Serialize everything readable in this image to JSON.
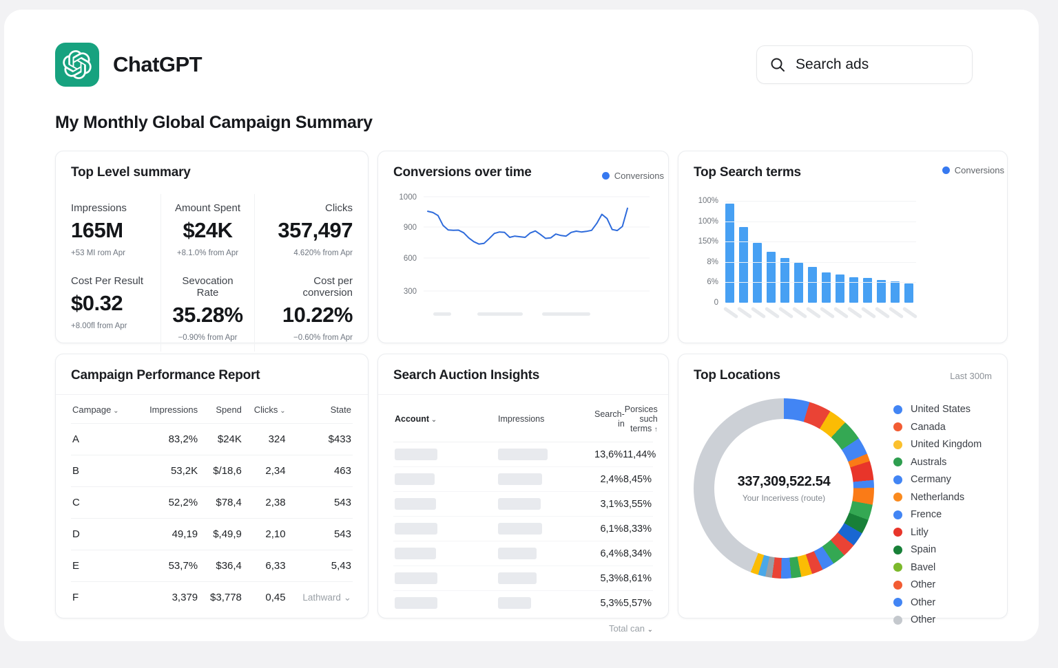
{
  "header": {
    "brand": "ChatGPT",
    "search_text": "Search ads"
  },
  "page_title": "My Monthly Global Campaign Summary",
  "colors": {
    "brand_green": "#17a27f",
    "chart_blue": "#2e6bdb",
    "bar_blue": "#47a0f3",
    "legend_dot_blue": "#3779f0",
    "donut_gray": "#ccd0d6"
  },
  "top_level_summary": {
    "title": "Top Level summary",
    "metrics": [
      {
        "label": "Impressions",
        "value": "165M",
        "delta": "+53 MI rom Apr",
        "align": "left"
      },
      {
        "label": "Amount Spent",
        "value": "$24K",
        "delta": "+8.1.0% from Apr",
        "align": "center"
      },
      {
        "label": "Clicks",
        "value": "357,497",
        "delta": "4.620% from Apr",
        "align": "right"
      },
      {
        "label": "Cost Per Result",
        "value": "$0.32",
        "delta": "+8.00fl from Apr",
        "align": "left"
      },
      {
        "label": "Sevocation Rate",
        "value": "35.28%",
        "delta": "−0.90% from Apr",
        "align": "center"
      },
      {
        "label": "Cost per conversion",
        "value": "10.22%",
        "delta": "−0.60% from Apr",
        "align": "right"
      }
    ]
  },
  "conversions_over_time": {
    "title": "Conversions over time",
    "legend_label": "Conversions",
    "chart_data": {
      "type": "line",
      "title": "Conversions over time",
      "series": [
        {
          "name": "Conversions",
          "values": [
            952,
            948,
            938,
            905,
            872,
            868,
            870,
            845,
            795,
            758,
            735,
            742,
            788,
            838,
            852,
            848,
            800,
            812,
            806,
            800,
            842,
            862,
            828,
            790,
            795,
            832,
            818,
            812,
            848,
            860,
            852,
            858,
            868,
            912,
            942,
            928,
            876,
            866,
            902,
            962
          ]
        }
      ],
      "y_tick_labels": [
        "1000",
        "900",
        "600",
        "300"
      ],
      "x_tick_labels": [],
      "grid": true,
      "legend_position": "top-right"
    }
  },
  "top_search_terms": {
    "title": "Top Search terms",
    "legend_label": "Conversions",
    "chart_data": {
      "type": "bar",
      "title": "Top Search terms",
      "categories": [
        "",
        "",
        "",
        "",
        "",
        "",
        "",
        "",
        "",
        "",
        "",
        "",
        "",
        ""
      ],
      "values": [
        97,
        74,
        59,
        50,
        44,
        39,
        35,
        30,
        28,
        25,
        24,
        22,
        21,
        19
      ],
      "y_tick_labels": [
        "100%",
        "100%",
        "150%",
        "8%",
        "6%",
        "0"
      ],
      "ylim": [
        0,
        100
      ],
      "grid": true,
      "legend_position": "top-right"
    }
  },
  "campaign_report": {
    "title": "Campaign Performance Report",
    "columns": [
      {
        "label": "Campage",
        "sort": "down"
      },
      {
        "label": "Impressions",
        "sort": null
      },
      {
        "label": "Spend",
        "sort": null
      },
      {
        "label": "Clicks",
        "sort": "down"
      },
      {
        "label": "State",
        "sort": null
      }
    ],
    "rows": [
      {
        "campaign": "A",
        "impressions": "83,2%",
        "spend": "$24K",
        "clicks": "324",
        "state": "$433"
      },
      {
        "campaign": "B",
        "impressions": "53,2K",
        "spend": "$/18,6",
        "clicks": "2,34",
        "state": "463"
      },
      {
        "campaign": "C",
        "impressions": "52,2%",
        "spend": "$78,4",
        "clicks": "2,38",
        "state": "543"
      },
      {
        "campaign": "D",
        "impressions": "49,19",
        "spend": "$,49,9",
        "clicks": "2,10",
        "state": "543"
      },
      {
        "campaign": "E",
        "impressions": "53,7%",
        "spend": "$36,4",
        "clicks": "6,33",
        "state": "5,43"
      },
      {
        "campaign": "F",
        "impressions": "3,379",
        "spend": "$3,778",
        "clicks": "0,45",
        "state": "Lathward"
      }
    ]
  },
  "auction_insights": {
    "title": "Search Auction Insights",
    "columns": [
      "Account",
      "Impressions",
      "Search-in",
      "Porsices such terms"
    ],
    "rows": [
      {
        "search_in": "13,6%",
        "share": "11,44%",
        "ph": [
          62,
          72
        ]
      },
      {
        "search_in": "2,4%",
        "share": "8,45%",
        "ph": [
          58,
          64
        ]
      },
      {
        "search_in": "3,1%",
        "share": "3,55%",
        "ph": [
          60,
          62
        ]
      },
      {
        "search_in": "6,1%",
        "share": "8,33%",
        "ph": [
          62,
          64
        ]
      },
      {
        "search_in": "6,4%",
        "share": "8,34%",
        "ph": [
          60,
          56
        ]
      },
      {
        "search_in": "5,3%",
        "share": "8,61%",
        "ph": [
          62,
          56
        ]
      },
      {
        "search_in": "5,3%",
        "share": "5,57%",
        "ph": [
          62,
          48
        ]
      }
    ],
    "footer_label": "Total can"
  },
  "top_locations": {
    "title": "Top Locations",
    "period": "Last 300m",
    "center_value": "337,309,522.54",
    "center_label": "Your Incerivess (route)",
    "chart_data": {
      "type": "pie",
      "title": "Top Locations",
      "segments": [
        {
          "color": "#4285f4",
          "value": 4.6
        },
        {
          "color": "#ea4335",
          "value": 4.0
        },
        {
          "color": "#fbbc04",
          "value": 3.3
        },
        {
          "color": "#34a853",
          "value": 3.7
        },
        {
          "color": "#4285f4",
          "value": 3.1
        },
        {
          "color": "#fa7b17",
          "value": 1.4
        },
        {
          "color": "#e8352a",
          "value": 3.4
        },
        {
          "color": "#4285f4",
          "value": 1.4
        },
        {
          "color": "#fa7b17",
          "value": 3.0
        },
        {
          "color": "#34a853",
          "value": 2.8
        },
        {
          "color": "#188038",
          "value": 2.6
        },
        {
          "color": "#1967d2",
          "value": 2.6
        },
        {
          "color": "#ea4335",
          "value": 2.4
        },
        {
          "color": "#34a853",
          "value": 2.4
        },
        {
          "color": "#4285f4",
          "value": 2.2
        },
        {
          "color": "#ea4335",
          "value": 2.0
        },
        {
          "color": "#fbbc04",
          "value": 2.0
        },
        {
          "color": "#34a853",
          "value": 1.8
        },
        {
          "color": "#4285f4",
          "value": 1.8
        },
        {
          "color": "#ea4335",
          "value": 1.6
        },
        {
          "color": "#9aa0a6",
          "value": 1.2
        },
        {
          "color": "#4aa8e8",
          "value": 1.3
        },
        {
          "color": "#fbbc04",
          "value": 1.4
        },
        {
          "color": "#ccd0d6",
          "value": 44.0
        }
      ]
    },
    "legend": [
      {
        "label": "United States",
        "color": "#4285f4"
      },
      {
        "label": "Canada",
        "color": "#f25c33"
      },
      {
        "label": "United Kingdom",
        "color": "#fbc02d"
      },
      {
        "label": "Australs",
        "color": "#2e9e4f"
      },
      {
        "label": "Cermany",
        "color": "#4285f4"
      },
      {
        "label": "Netherlands",
        "color": "#fa8a1e"
      },
      {
        "label": "Frence",
        "color": "#4285f4"
      },
      {
        "label": "Litly",
        "color": "#e8352a"
      },
      {
        "label": "Spain",
        "color": "#188038"
      },
      {
        "label": "Bavel",
        "color": "#7cb92c"
      },
      {
        "label": "Other",
        "color": "#f25c33"
      },
      {
        "label": "Other",
        "color": "#4285f4"
      },
      {
        "label": "Other",
        "color": "#c4c8cd"
      }
    ]
  }
}
